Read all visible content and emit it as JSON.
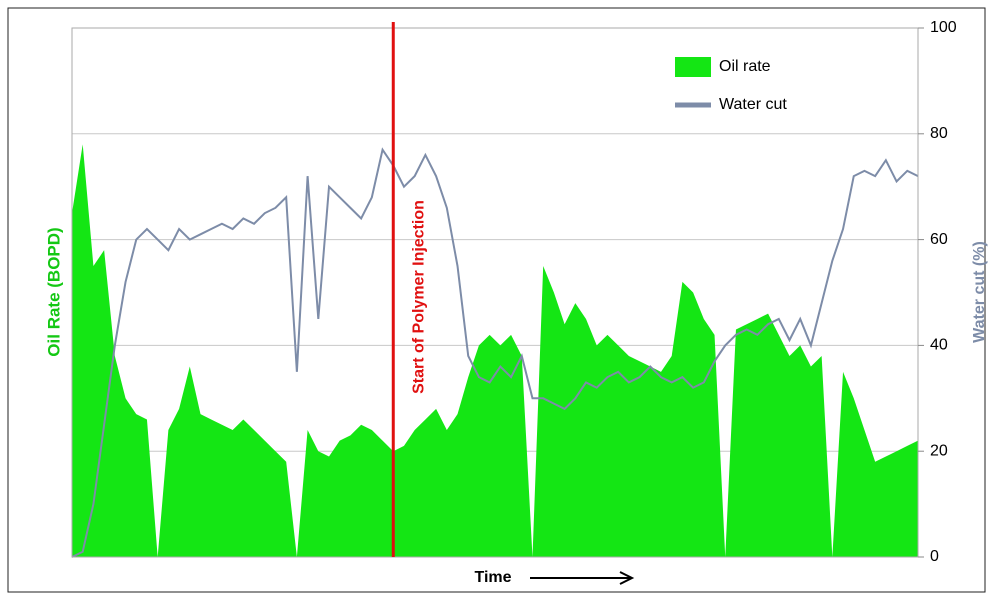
{
  "chart_data": {
    "type": "line",
    "x_label": "Time",
    "y_label": "Oil Rate (BOPD)",
    "y2_label": "Water cut (%)",
    "annotation": {
      "text": "Start of Polymer Injection",
      "index": 30
    },
    "series": [
      {
        "name": "Oil rate",
        "kind": "area",
        "color": "#14e614",
        "axis": "y2",
        "values": [
          65,
          78,
          55,
          58,
          38,
          30,
          27,
          26,
          0,
          24,
          28,
          36,
          27,
          26,
          25,
          24,
          26,
          24,
          22,
          20,
          18,
          0,
          24,
          20,
          19,
          22,
          23,
          25,
          24,
          22,
          20,
          21,
          24,
          26,
          28,
          24,
          27,
          34,
          40,
          42,
          40,
          42,
          38,
          0,
          55,
          50,
          44,
          48,
          45,
          40,
          42,
          40,
          38,
          37,
          36,
          35,
          38,
          52,
          50,
          45,
          42,
          0,
          43,
          44,
          45,
          46,
          42,
          38,
          40,
          36,
          38,
          0,
          35,
          30,
          24,
          18,
          19,
          20,
          21,
          22
        ]
      },
      {
        "name": "Water cut",
        "kind": "line",
        "color": "#7d8ca8",
        "axis": "y2",
        "values": [
          0,
          1,
          10,
          25,
          40,
          52,
          60,
          62,
          60,
          58,
          62,
          60,
          61,
          62,
          63,
          62,
          64,
          63,
          65,
          66,
          68,
          35,
          72,
          45,
          70,
          68,
          66,
          64,
          68,
          77,
          74,
          70,
          72,
          76,
          72,
          66,
          55,
          38,
          34,
          33,
          36,
          34,
          38,
          30,
          30,
          29,
          28,
          30,
          33,
          32,
          34,
          35,
          33,
          34,
          36,
          34,
          33,
          34,
          32,
          33,
          37,
          40,
          42,
          43,
          42,
          44,
          45,
          41,
          45,
          40,
          48,
          56,
          62,
          72,
          73,
          72,
          75,
          71,
          73,
          72
        ]
      }
    ],
    "y2lim": [
      0,
      100
    ],
    "y2ticks": [
      0,
      20,
      40,
      60,
      80,
      100
    ],
    "grid": true
  }
}
